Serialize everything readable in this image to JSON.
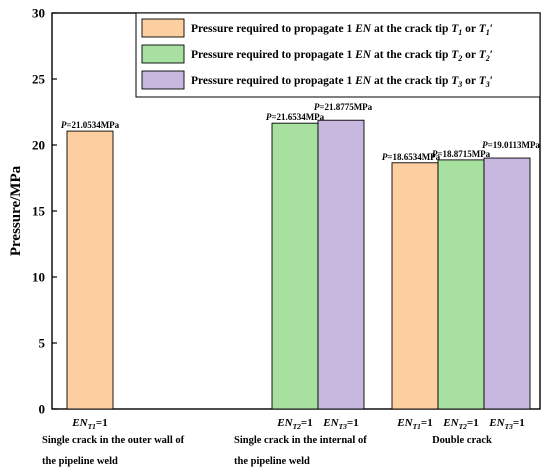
{
  "chart_data": {
    "type": "bar",
    "ylabel": "Pressure/MPa",
    "ylim": [
      0,
      30
    ],
    "yticks": [
      0,
      5,
      10,
      15,
      20,
      25,
      30
    ],
    "grid": false,
    "legend_position": "top-right",
    "series": [
      {
        "name_prefix": "Pressure required to propagate 1 ",
        "name_em": "EN",
        "name_mid": " at the crack tip ",
        "name_sym": "T",
        "name_sub": "1",
        "name_or": " or ",
        "name_sub2": "1",
        "name_prime": "′",
        "color": "#FDCFA0"
      },
      {
        "name_prefix": "Pressure required to propagate 1 ",
        "name_em": "EN",
        "name_mid": " at the crack tip ",
        "name_sym": "T",
        "name_sub": "2",
        "name_or": " or ",
        "name_sub2": "2",
        "name_prime": "′",
        "color": "#A8E0A0"
      },
      {
        "name_prefix": "Pressure required to propagate 1 ",
        "name_em": "EN",
        "name_mid": " at the crack tip ",
        "name_sym": "T",
        "name_sub": "3",
        "name_or": " or ",
        "name_sub2": "3",
        "name_prime": "′",
        "color": "#C8B8E0"
      }
    ],
    "groups": [
      {
        "label_lines": [
          "Single crack in the outer wall of",
          "the pipeline weld"
        ],
        "bars": [
          {
            "series": 0,
            "value": 21.0534,
            "label": "P=21.0534MPa",
            "en_sub": "T1",
            "en_suffix": "=1"
          }
        ]
      },
      {
        "label_lines": [
          "Single crack in the internal of",
          "the pipeline weld"
        ],
        "bars": [
          {
            "series": 1,
            "value": 21.6534,
            "label": "P=21.6534MPa",
            "en_sub": "T2",
            "en_suffix": "=1"
          },
          {
            "series": 2,
            "value": 21.8775,
            "label": "P=21.8775MPa",
            "en_sub": "T3",
            "en_suffix": "=1"
          }
        ]
      },
      {
        "label_lines": [
          "Double crack"
        ],
        "bars": [
          {
            "series": 0,
            "value": 18.6534,
            "label": "P=18.6534MPa",
            "en_sub": "T1",
            "en_suffix": "=1"
          },
          {
            "series": 1,
            "value": 18.8715,
            "label": "P=18.8715MPa",
            "en_sub": "T2",
            "en_suffix": "=1"
          },
          {
            "series": 2,
            "value": 19.0113,
            "label": "P=19.0113MPa",
            "en_sub": "T3",
            "en_suffix": "=1"
          }
        ]
      }
    ],
    "en_symbol": "EN"
  }
}
